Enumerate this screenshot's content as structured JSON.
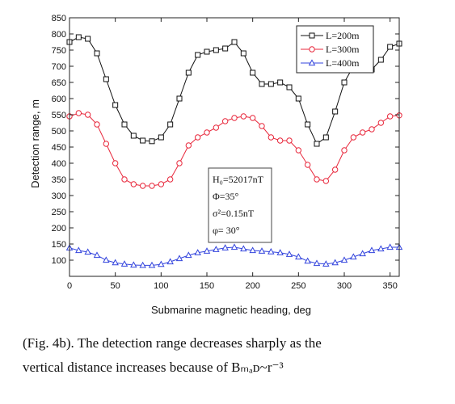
{
  "chart_data": {
    "type": "line",
    "ylabel": "Detection range, m",
    "xlabel": "Submarine magnetic heading, deg",
    "xlim": [
      0,
      360
    ],
    "ylim": [
      50,
      850
    ],
    "x_ticks": [
      0,
      50,
      100,
      150,
      200,
      250,
      300,
      350
    ],
    "y_ticks": [
      100,
      150,
      200,
      250,
      300,
      350,
      400,
      450,
      500,
      550,
      600,
      650,
      700,
      750,
      800,
      850
    ],
    "legend_position": "top-right",
    "x": [
      0,
      10,
      20,
      30,
      40,
      50,
      60,
      70,
      80,
      90,
      100,
      110,
      120,
      130,
      140,
      150,
      160,
      170,
      180,
      190,
      200,
      210,
      220,
      230,
      240,
      250,
      260,
      270,
      280,
      290,
      300,
      310,
      320,
      330,
      340,
      350,
      360
    ],
    "series": [
      {
        "name": "L=200m",
        "color": "#111111",
        "marker": "square",
        "values": [
          775,
          790,
          785,
          740,
          660,
          580,
          520,
          485,
          470,
          468,
          480,
          520,
          600,
          680,
          735,
          745,
          750,
          755,
          775,
          740,
          680,
          645,
          645,
          650,
          635,
          600,
          520,
          460,
          480,
          560,
          650,
          700,
          700,
          690,
          720,
          760,
          770
        ]
      },
      {
        "name": "L=300m",
        "color": "#e8283c",
        "marker": "circle",
        "values": [
          545,
          555,
          550,
          520,
          460,
          400,
          350,
          335,
          330,
          330,
          335,
          350,
          400,
          455,
          480,
          495,
          510,
          530,
          540,
          545,
          540,
          515,
          480,
          470,
          470,
          440,
          395,
          350,
          345,
          380,
          440,
          480,
          495,
          505,
          525,
          545,
          548
        ]
      },
      {
        "name": "L=400m",
        "color": "#3344dd",
        "marker": "triangle",
        "values": [
          138,
          130,
          125,
          115,
          100,
          92,
          88,
          85,
          84,
          84,
          87,
          95,
          105,
          115,
          123,
          128,
          133,
          138,
          140,
          135,
          130,
          128,
          126,
          123,
          118,
          110,
          97,
          90,
          88,
          92,
          100,
          110,
          120,
          130,
          135,
          140,
          140
        ]
      }
    ],
    "annotations": [
      "H₀=52017nT",
      "Φ=35°",
      "σ²=0.15nT",
      "φ= 30°"
    ]
  },
  "caption": {
    "line1": "(Fig.  4b).   The  detection  range  decreases  sharply  as  the",
    "line2": "vertical  distance  increases  because  of  Bₘₐᴅ~r⁻³"
  }
}
